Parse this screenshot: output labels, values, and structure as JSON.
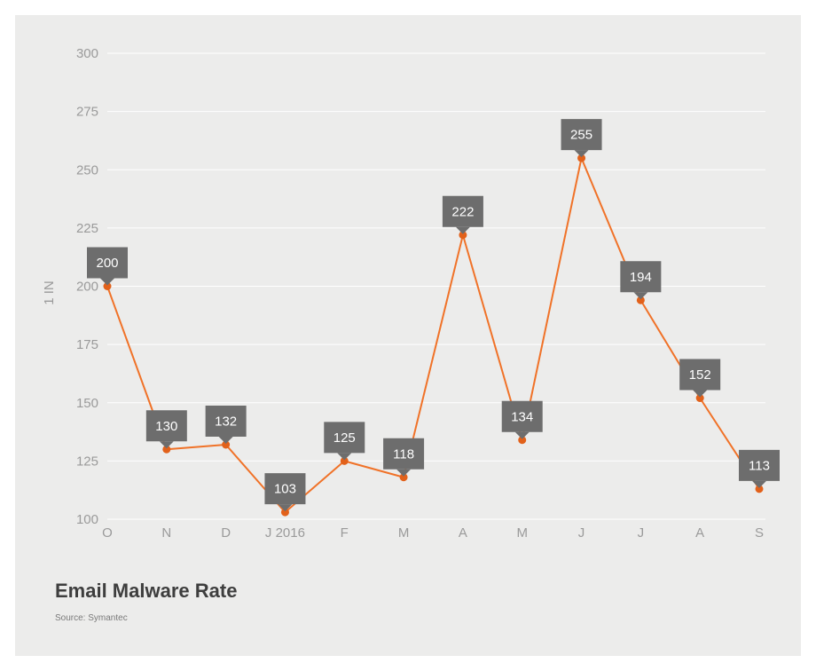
{
  "chart_data": {
    "type": "line",
    "title": "Email Malware Rate",
    "source": "Source: Symantec",
    "ylabel": "1 IN",
    "xlabel": "",
    "categories": [
      "O",
      "N",
      "D",
      "J 2016",
      "F",
      "M",
      "A",
      "M",
      "J",
      "J",
      "A",
      "S"
    ],
    "series": [
      {
        "name": "Email Malware Rate",
        "values": [
          200,
          130,
          132,
          103,
          125,
          118,
          222,
          134,
          255,
          194,
          152,
          113
        ]
      }
    ],
    "ylim": [
      100,
      300
    ],
    "yticks": [
      100,
      125,
      150,
      175,
      200,
      225,
      250,
      275,
      300
    ],
    "grid": true,
    "colors": {
      "line": "#f07228",
      "marker": "#e2611a",
      "callout": "#6d6d6d",
      "background": "#ececeb"
    }
  }
}
